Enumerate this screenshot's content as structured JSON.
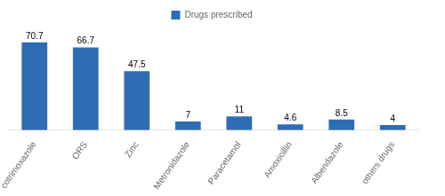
{
  "chart_data": {
    "type": "bar",
    "categories": [
      "cotrimoxazole",
      "ORS",
      "Zinc",
      "Metronidazole",
      "Paracetamol",
      "Amoxicillin",
      "Albendazole",
      "others drugs"
    ],
    "series": [
      {
        "name": "Drugs prescribed",
        "color": "#2E6DB4",
        "values": [
          70.7,
          66.7,
          47.5,
          7,
          11,
          4.6,
          8.5,
          4
        ]
      }
    ],
    "ylim": [
      0,
      82
    ],
    "grid": false,
    "legend": "top",
    "data_labels": true,
    "tick_labels": "x"
  }
}
